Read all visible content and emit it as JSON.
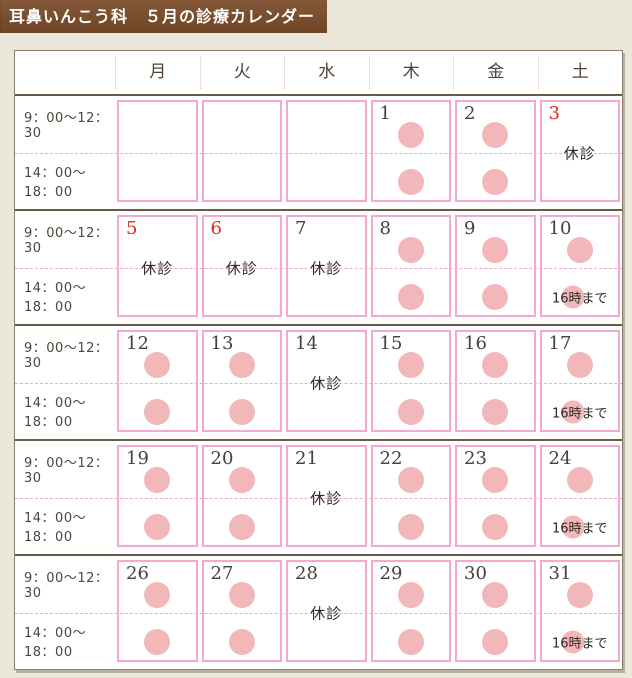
{
  "title": "耳鼻いんこう科　５月の診療カレンダー",
  "day_headers": [
    "月",
    "火",
    "水",
    "木",
    "金",
    "土"
  ],
  "time_slots": [
    "9：00～12：30",
    "14：00～18：00"
  ],
  "labels": {
    "closed": "休診",
    "until16": "16時まで"
  },
  "colors": {
    "title_brown": "#7b4c29",
    "cell_border_pink": "#f6a9ce",
    "open_circle_pink": "#f1b7b9",
    "holiday_red": "#e12717",
    "separator_brown": "#6a5a49",
    "page_background": "#ece7db"
  },
  "weeks": [
    [
      {
        "day": "",
        "type": "empty",
        "red": false
      },
      {
        "day": "",
        "type": "empty",
        "red": false
      },
      {
        "day": "",
        "type": "empty",
        "red": false
      },
      {
        "day": "1",
        "type": "open",
        "red": false
      },
      {
        "day": "2",
        "type": "open",
        "red": false
      },
      {
        "day": "3",
        "type": "closed",
        "red": true
      }
    ],
    [
      {
        "day": "5",
        "type": "closed",
        "red": true
      },
      {
        "day": "6",
        "type": "closed",
        "red": true
      },
      {
        "day": "7",
        "type": "closed",
        "red": false
      },
      {
        "day": "8",
        "type": "open",
        "red": false
      },
      {
        "day": "9",
        "type": "open",
        "red": false
      },
      {
        "day": "10",
        "type": "open-until16",
        "red": false
      }
    ],
    [
      {
        "day": "12",
        "type": "open",
        "red": false
      },
      {
        "day": "13",
        "type": "open",
        "red": false
      },
      {
        "day": "14",
        "type": "closed",
        "red": false
      },
      {
        "day": "15",
        "type": "open",
        "red": false
      },
      {
        "day": "16",
        "type": "open",
        "red": false
      },
      {
        "day": "17",
        "type": "open-until16",
        "red": false
      }
    ],
    [
      {
        "day": "19",
        "type": "open",
        "red": false
      },
      {
        "day": "20",
        "type": "open",
        "red": false
      },
      {
        "day": "21",
        "type": "closed",
        "red": false
      },
      {
        "day": "22",
        "type": "open",
        "red": false
      },
      {
        "day": "23",
        "type": "open",
        "red": false
      },
      {
        "day": "24",
        "type": "open-until16",
        "red": false
      }
    ],
    [
      {
        "day": "26",
        "type": "open",
        "red": false
      },
      {
        "day": "27",
        "type": "open",
        "red": false
      },
      {
        "day": "28",
        "type": "closed",
        "red": false
      },
      {
        "day": "29",
        "type": "open",
        "red": false
      },
      {
        "day": "30",
        "type": "open",
        "red": false
      },
      {
        "day": "31",
        "type": "open-until16",
        "red": false
      }
    ]
  ]
}
